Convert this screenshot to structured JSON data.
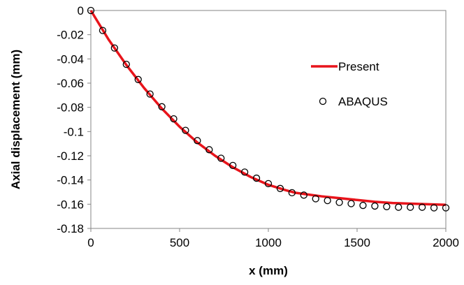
{
  "chart_data": {
    "type": "line",
    "title": "",
    "xlabel": "x (mm)",
    "ylabel": "Axial displacement (mm)",
    "xlim": [
      0,
      2000
    ],
    "ylim": [
      -0.18,
      0
    ],
    "xticks": [
      0,
      500,
      1000,
      1500,
      2000
    ],
    "yticks": [
      0,
      -0.02,
      -0.04,
      -0.06,
      -0.08,
      -0.1,
      -0.12,
      -0.14,
      -0.16,
      -0.18
    ],
    "xtick_labels": [
      "0",
      "500",
      "1000",
      "1500",
      "2000"
    ],
    "ytick_labels": [
      "0",
      "-0.02",
      "-0.04",
      "-0.06",
      "-0.08",
      "-0.1",
      "-0.12",
      "-0.14",
      "-0.16",
      "-0.18"
    ],
    "grid": false,
    "legend_position": "right",
    "series": [
      {
        "name": "Present",
        "kind": "line",
        "color": "#e8141b",
        "x": [
          0,
          100,
          200,
          300,
          400,
          500,
          600,
          700,
          800,
          900,
          1000,
          1100,
          1150,
          1200,
          1300,
          1400,
          1500,
          1600,
          1700,
          1800,
          1900,
          2000
        ],
        "y": [
          0,
          -0.024,
          -0.045,
          -0.064,
          -0.081,
          -0.096,
          -0.109,
          -0.12,
          -0.1295,
          -0.1375,
          -0.144,
          -0.1485,
          -0.1505,
          -0.1515,
          -0.1535,
          -0.155,
          -0.1565,
          -0.158,
          -0.159,
          -0.1595,
          -0.16,
          -0.1605
        ]
      },
      {
        "name": "ABAQUS",
        "kind": "scatter",
        "color": "#000000",
        "x": [
          0,
          66.7,
          133.3,
          200,
          266.7,
          333.3,
          400,
          466.7,
          533.3,
          600,
          666.7,
          733.3,
          800,
          866.7,
          933.3,
          1000,
          1066.7,
          1133.3,
          1200,
          1266.7,
          1333.3,
          1400,
          1466.7,
          1533.3,
          1600,
          1666.7,
          1733.3,
          1800,
          1866.7,
          1933.3,
          2000
        ],
        "y": [
          0,
          -0.0165,
          -0.031,
          -0.0445,
          -0.057,
          -0.069,
          -0.0795,
          -0.0895,
          -0.099,
          -0.1075,
          -0.115,
          -0.122,
          -0.128,
          -0.1335,
          -0.1385,
          -0.143,
          -0.147,
          -0.1505,
          -0.1525,
          -0.1555,
          -0.157,
          -0.1585,
          -0.1595,
          -0.161,
          -0.1615,
          -0.162,
          -0.1625,
          -0.1625,
          -0.1625,
          -0.163,
          -0.163
        ]
      }
    ]
  }
}
